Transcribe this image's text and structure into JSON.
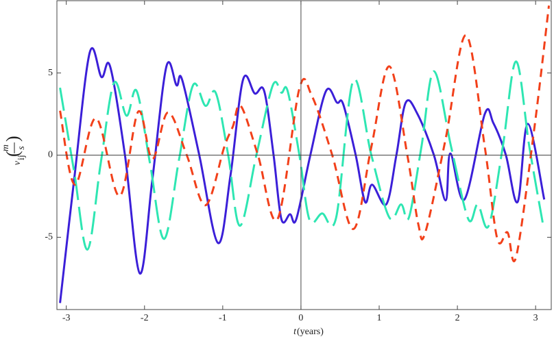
{
  "chart_data": {
    "type": "line",
    "x_label": {
      "var": "t",
      "unit": "(years)"
    },
    "y_label": {
      "var": "v",
      "subscript": "ij",
      "numerator": "m",
      "denominator": "s"
    },
    "xlim": [
      -3.12,
      3.2
    ],
    "ylim": [
      -9.4,
      9.4
    ],
    "xticks": [
      -3,
      -2,
      -1,
      0,
      1,
      2,
      3
    ],
    "yticks": [
      -5,
      0,
      5
    ],
    "series": [
      {
        "color": "#3b1fd8",
        "dash": "solid",
        "x": [
          -3.08,
          -2.9,
          -2.7,
          -2.55,
          -2.44,
          -2.25,
          -2.06,
          -1.9,
          -1.72,
          -1.59,
          -1.52,
          -1.3,
          -1.06,
          -0.9,
          -0.74,
          -0.59,
          -0.47,
          -0.35,
          -0.25,
          -0.14,
          -0.06,
          0.12,
          0.32,
          0.46,
          0.54,
          0.7,
          0.82,
          0.91,
          1.09,
          1.22,
          1.34,
          1.49,
          1.7,
          1.85,
          1.91,
          2.09,
          2.35,
          2.46,
          2.62,
          2.77,
          2.9,
          3.11
        ],
        "values": [
          -9.0,
          -1.5,
          6.25,
          4.75,
          5.4,
          0,
          -7.2,
          -1.5,
          5.4,
          4.25,
          4.6,
          0,
          -5.35,
          -1.2,
          4.6,
          3.75,
          3.9,
          0,
          -3.9,
          -3.6,
          -3.9,
          0,
          3.9,
          3.2,
          3.1,
          0,
          -2.85,
          -1.8,
          -3.0,
          0,
          3.2,
          2.5,
          0,
          -2.75,
          0.1,
          -2.7,
          2.5,
          1.95,
          0,
          -2.85,
          1.9,
          -2.7
        ]
      },
      {
        "color": "#2ee6b2",
        "dash": "long",
        "x": [
          -3.08,
          -2.9,
          -2.73,
          -2.56,
          -2.39,
          -2.23,
          -2.1,
          -1.93,
          -1.75,
          -1.56,
          -1.38,
          -1.22,
          -1.09,
          -0.93,
          -0.78,
          -0.57,
          -0.36,
          -0.25,
          -0.17,
          -0.02,
          0.11,
          0.27,
          0.45,
          0.67,
          0.9,
          1.13,
          1.28,
          1.38,
          1.54,
          1.7,
          1.92,
          2.14,
          2.26,
          2.4,
          2.58,
          2.75,
          2.92,
          3.09
        ],
        "values": [
          4.1,
          -1.0,
          -5.75,
          -0.5,
          4.4,
          2.4,
          3.9,
          -0.5,
          -5.1,
          -0.3,
          4.25,
          3.0,
          3.8,
          0,
          -4.3,
          0,
          4.25,
          3.8,
          3.9,
          0,
          -3.95,
          -3.55,
          -3.8,
          4.55,
          0,
          -3.8,
          -3.0,
          -3.8,
          0.5,
          5.1,
          0.5,
          -3.9,
          -3.0,
          -4.3,
          0.5,
          5.7,
          0.5,
          -4.1
        ]
      },
      {
        "color": "#f2401a",
        "dash": "short",
        "x": [
          -3.08,
          -2.89,
          -2.62,
          -2.32,
          -2.08,
          -1.9,
          -1.7,
          -1.46,
          -1.22,
          -0.98,
          -0.87,
          -0.77,
          -0.55,
          -0.3,
          -0.02,
          0.14,
          0.4,
          0.67,
          0.9,
          1.13,
          1.36,
          1.5,
          1.59,
          1.85,
          2.11,
          2.35,
          2.51,
          2.64,
          2.75,
          2.98,
          3.17
        ],
        "values": [
          2.7,
          -1.8,
          2.25,
          -2.5,
          2.65,
          -0.25,
          2.6,
          0,
          -3.05,
          0.5,
          1.75,
          3.0,
          0,
          -3.9,
          4.05,
          3.6,
          0,
          -4.5,
          0.5,
          5.4,
          0,
          -4.2,
          -4.7,
          1.0,
          7.3,
          0.5,
          -5.1,
          -4.7,
          -6.2,
          1.5,
          9.1
        ]
      }
    ]
  }
}
